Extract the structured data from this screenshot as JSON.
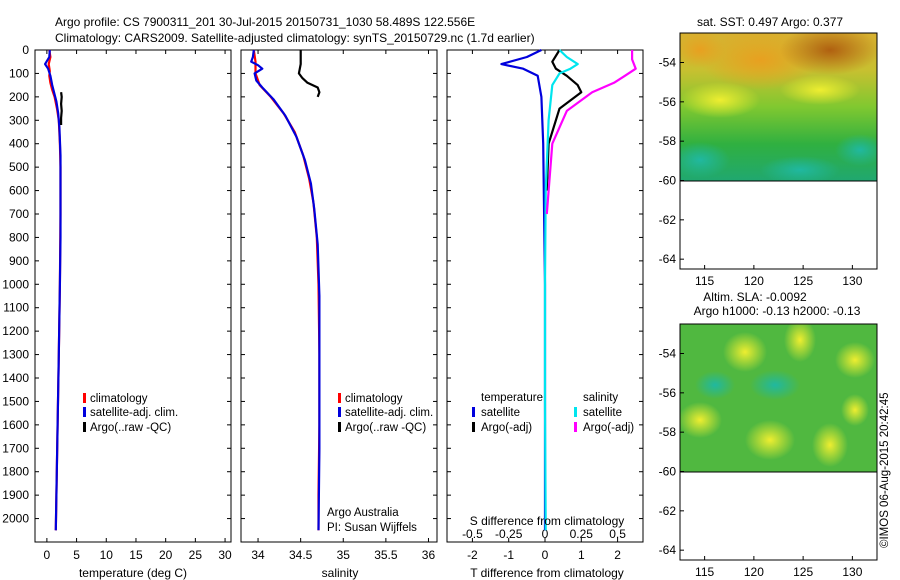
{
  "header": {
    "line1": "Argo profile: CS 7900311_201 30-Jul-2015 20150731_1030 58.489S 122.556E",
    "line2": "Climatology: CARS2009. Satellite-adjusted climatology: synTS_20150729.nc (1.7d earlier)"
  },
  "credit": "©IMOS 06-Aug-2015 20:42:45",
  "colors": {
    "climatology": "#ff0000",
    "satellite": "#0000dd",
    "argo": "#000000",
    "satellite_salinity": "#00e5ee",
    "argo_salinity": "#ff00ff"
  },
  "chart_data": [
    {
      "type": "line",
      "panel": "temperature",
      "xlabel": "temperature (deg C)",
      "ylabel": "",
      "xlim": [
        -2,
        31
      ],
      "ylim": [
        2100,
        0
      ],
      "xticks": [
        0,
        5,
        10,
        15,
        20,
        25,
        30
      ],
      "yticks": [
        0,
        100,
        200,
        300,
        400,
        500,
        600,
        700,
        800,
        900,
        1000,
        1100,
        1200,
        1300,
        1400,
        1500,
        1600,
        1700,
        1800,
        1900,
        2000
      ],
      "legend": {
        "position": "middle-left",
        "entries": [
          "climatology",
          "satellite-adj. clim.",
          "Argo(..raw -QC)"
        ]
      },
      "series": [
        {
          "name": "climatology",
          "color": "#ff0000",
          "points": [
            [
              0.4,
              0
            ],
            [
              0.6,
              30
            ],
            [
              0.3,
              60
            ],
            [
              0.5,
              90
            ],
            [
              0.4,
              110
            ],
            [
              0.6,
              140
            ],
            [
              0.9,
              170
            ],
            [
              1.3,
              200
            ],
            [
              1.7,
              250
            ],
            [
              2.0,
              300
            ],
            [
              2.2,
              400
            ],
            [
              2.3,
              500
            ],
            [
              2.3,
              700
            ],
            [
              2.2,
              1000
            ],
            [
              2.0,
              1300
            ],
            [
              1.8,
              1600
            ],
            [
              1.6,
              1900
            ],
            [
              1.5,
              2050
            ]
          ]
        },
        {
          "name": "satellite-adj. clim.",
          "color": "#0000dd",
          "points": [
            [
              0.5,
              0
            ],
            [
              0.4,
              30
            ],
            [
              -0.3,
              60
            ],
            [
              0.2,
              80
            ],
            [
              0.6,
              110
            ],
            [
              0.9,
              150
            ],
            [
              1.2,
              180
            ],
            [
              1.6,
              220
            ],
            [
              1.9,
              270
            ],
            [
              2.1,
              330
            ],
            [
              2.3,
              450
            ],
            [
              2.3,
              600
            ],
            [
              2.3,
              800
            ],
            [
              2.2,
              1000
            ],
            [
              2.0,
              1300
            ],
            [
              1.8,
              1600
            ],
            [
              1.6,
              1900
            ],
            [
              1.5,
              2050
            ]
          ]
        },
        {
          "name": "Argo(..raw -QC)",
          "color": "#000000",
          "points": [
            [
              2.4,
              180
            ],
            [
              2.5,
              200
            ],
            [
              2.4,
              230
            ],
            [
              2.5,
              260
            ],
            [
              2.4,
              290
            ],
            [
              2.4,
              320
            ]
          ]
        }
      ]
    },
    {
      "type": "line",
      "panel": "salinity",
      "xlabel": "salinity",
      "xlim": [
        33.8,
        36.1
      ],
      "ylim": [
        2100,
        0
      ],
      "xticks": [
        34,
        34.5,
        35,
        35.5,
        36
      ],
      "legend": {
        "position": "middle-right",
        "entries": [
          "climatology",
          "satellite-adj. clim.",
          "Argo(..raw -QC)"
        ]
      },
      "annotations": [
        "Argo Australia",
        "PI: Susan Wijffels"
      ],
      "series": [
        {
          "name": "climatology",
          "color": "#ff0000",
          "points": [
            [
              33.95,
              0
            ],
            [
              33.97,
              50
            ],
            [
              33.97,
              100
            ],
            [
              34.02,
              150
            ],
            [
              34.15,
              200
            ],
            [
              34.3,
              270
            ],
            [
              34.43,
              350
            ],
            [
              34.53,
              450
            ],
            [
              34.6,
              550
            ],
            [
              34.65,
              650
            ],
            [
              34.69,
              800
            ],
            [
              34.71,
              1000
            ],
            [
              34.72,
              1300
            ],
            [
              34.72,
              1600
            ],
            [
              34.71,
              1900
            ],
            [
              34.71,
              2050
            ]
          ]
        },
        {
          "name": "satellite-adj. clim.",
          "color": "#0000dd",
          "points": [
            [
              33.95,
              0
            ],
            [
              33.94,
              30
            ],
            [
              33.92,
              50
            ],
            [
              34.0,
              65
            ],
            [
              34.05,
              80
            ],
            [
              33.96,
              100
            ],
            [
              33.98,
              130
            ],
            [
              34.05,
              160
            ],
            [
              34.18,
              210
            ],
            [
              34.32,
              280
            ],
            [
              34.45,
              370
            ],
            [
              34.55,
              470
            ],
            [
              34.62,
              570
            ],
            [
              34.66,
              680
            ],
            [
              34.7,
              830
            ],
            [
              34.72,
              1050
            ],
            [
              34.72,
              1400
            ],
            [
              34.72,
              1700
            ],
            [
              34.71,
              2050
            ]
          ]
        },
        {
          "name": "Argo(..raw -QC)",
          "color": "#000000",
          "points": [
            [
              34.5,
              0
            ],
            [
              34.5,
              60
            ],
            [
              34.48,
              100
            ],
            [
              34.52,
              120
            ],
            [
              34.58,
              140
            ],
            [
              34.7,
              160
            ],
            [
              34.72,
              180
            ],
            [
              34.7,
              200
            ]
          ]
        }
      ]
    },
    {
      "type": "line",
      "panel": "difference",
      "xlabel": "T difference from climatology",
      "x2label": "S difference from climatology",
      "xlim": [
        -2.7,
        2.7
      ],
      "x2lim": [
        -0.675,
        0.675
      ],
      "ylim": [
        2100,
        0
      ],
      "xticks": [
        -2,
        -1,
        0,
        1,
        2
      ],
      "x2ticks": [
        -0.5,
        -0.25,
        0,
        0.25,
        0.5
      ],
      "legend": {
        "position": "middle",
        "headers": [
          "temperature",
          "salinity"
        ],
        "entries": [
          "satellite",
          "Argo(-adj)",
          "satellite",
          "Argo(-adj)"
        ]
      },
      "series": [
        {
          "name": "temperature satellite",
          "color": "#0000dd",
          "points": [
            [
              -0.1,
              0
            ],
            [
              -0.5,
              30
            ],
            [
              -1.2,
              60
            ],
            [
              -0.6,
              80
            ],
            [
              -0.2,
              110
            ],
            [
              -0.1,
              200
            ],
            [
              -0.05,
              400
            ],
            [
              0,
              1000
            ],
            [
              0,
              2050
            ]
          ]
        },
        {
          "name": "temperature Argo(-adj)",
          "color": "#000000",
          "points": [
            [
              0.4,
              0
            ],
            [
              0.2,
              50
            ],
            [
              0.3,
              80
            ],
            [
              0.6,
              110
            ],
            [
              0.9,
              150
            ],
            [
              1.0,
              180
            ],
            [
              0.4,
              250
            ],
            [
              0.1,
              400
            ],
            [
              0.05,
              600
            ]
          ]
        },
        {
          "name": "salinity satellite",
          "color": "#00e5ee",
          "points": [
            [
              0.4,
              0
            ],
            [
              0.6,
              30
            ],
            [
              0.9,
              60
            ],
            [
              0.7,
              80
            ],
            [
              0.4,
              100
            ],
            [
              0.2,
              150
            ],
            [
              0.1,
              300
            ],
            [
              0.02,
              600
            ],
            [
              0,
              1000
            ],
            [
              0,
              1500
            ],
            [
              0.02,
              2050
            ]
          ]
        },
        {
          "name": "salinity Argo(-adj)",
          "color": "#ff00ff",
          "points": [
            [
              2.4,
              0
            ],
            [
              2.4,
              40
            ],
            [
              2.5,
              80
            ],
            [
              2.2,
              110
            ],
            [
              1.9,
              140
            ],
            [
              1.3,
              180
            ],
            [
              0.6,
              260
            ],
            [
              0.2,
              400
            ],
            [
              0.05,
              700
            ]
          ]
        }
      ]
    },
    {
      "type": "heatmap",
      "panel": "sst",
      "title": "sat. SST: 0.497  Argo: 0.377",
      "xlim": [
        112.5,
        132.5
      ],
      "ylim": [
        -64.5,
        -52.5
      ],
      "xticks": [
        115,
        120,
        125,
        130
      ],
      "yticks": [
        -54,
        -56,
        -58,
        -60,
        -62,
        -64
      ],
      "data_extent_lat": [
        -60,
        -52.5
      ]
    },
    {
      "type": "heatmap",
      "panel": "sla",
      "title": "Altim. SLA: -0.0092",
      "subtitle": "Argo h1000: -0.13  h2000: -0.13",
      "xlim": [
        112.5,
        132.5
      ],
      "ylim": [
        -64.5,
        -52.5
      ],
      "xticks": [
        115,
        120,
        125,
        130
      ],
      "yticks": [
        -54,
        -56,
        -58,
        -60,
        -62,
        -64
      ],
      "data_extent_lat": [
        -60,
        -52.5
      ]
    }
  ]
}
